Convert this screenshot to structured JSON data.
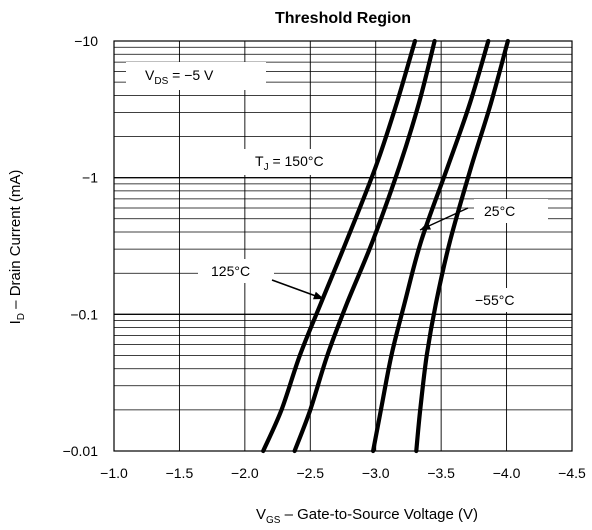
{
  "chart_data": {
    "type": "line",
    "title": "Threshold Region",
    "xlabel": {
      "prefix": "V",
      "subscript": "GS",
      "suffix": " – Gate-to-Source Voltage (V)"
    },
    "ylabel": {
      "prefix": "I",
      "subscript": "D",
      "suffix": " – Drain Current (mA)"
    },
    "x_axis": {
      "range": [
        -1.0,
        -4.5
      ],
      "ticks": [
        -1.0,
        -1.5,
        -2.0,
        -2.5,
        -3.0,
        -3.5,
        -4.0,
        -4.5
      ],
      "tick_labels": [
        "−1.0",
        "−1.5",
        "−2.0",
        "−2.5",
        "−3.0",
        "−3.5",
        "−4.0",
        "−4.5"
      ]
    },
    "y_axis": {
      "scale": "log",
      "range": [
        -0.01,
        -10
      ],
      "ticks": [
        -0.01,
        -0.1,
        -1,
        -10
      ],
      "tick_labels": [
        "−0.01",
        "−0.1",
        "−1",
        "−10"
      ]
    },
    "grid": true,
    "series": [
      {
        "name": "150°C",
        "x": [
          -2.14,
          -2.28,
          -2.42,
          -2.58,
          -2.78,
          -3.0,
          -3.16,
          -3.3
        ],
        "y": [
          -0.01,
          -0.02,
          -0.05,
          -0.12,
          -0.35,
          -1.2,
          -3.5,
          -10
        ]
      },
      {
        "name": "125°C",
        "x": [
          -2.38,
          -2.5,
          -2.63,
          -2.78,
          -2.98,
          -3.18,
          -3.33,
          -3.45
        ],
        "y": [
          -0.01,
          -0.02,
          -0.05,
          -0.12,
          -0.35,
          -1.2,
          -3.5,
          -10
        ]
      },
      {
        "name": "25°C",
        "x": [
          -2.98,
          -3.04,
          -3.12,
          -3.22,
          -3.35,
          -3.55,
          -3.72,
          -3.86
        ],
        "y": [
          -0.01,
          -0.02,
          -0.05,
          -0.12,
          -0.35,
          -1.2,
          -3.5,
          -10
        ]
      },
      {
        "name": "−55°C",
        "x": [
          -3.31,
          -3.34,
          -3.39,
          -3.46,
          -3.57,
          -3.73,
          -3.88,
          -4.01
        ],
        "y": [
          -0.01,
          -0.02,
          -0.05,
          -0.12,
          -0.35,
          -1.2,
          -3.5,
          -10
        ]
      }
    ],
    "annotations": [
      {
        "id": "vds",
        "prefix": "V",
        "subscript": "DS",
        "suffix": " = −5 V"
      },
      {
        "id": "label-150",
        "prefix": "T",
        "subscript": "J",
        "suffix": " = 150°C"
      },
      {
        "id": "label-125",
        "text": "125°C"
      },
      {
        "id": "label-25",
        "text": "25°C"
      },
      {
        "id": "label-m55",
        "text": "−55°C"
      }
    ],
    "colors": {
      "line": "#000000",
      "grid": "#000000",
      "background": "#ffffff"
    }
  }
}
